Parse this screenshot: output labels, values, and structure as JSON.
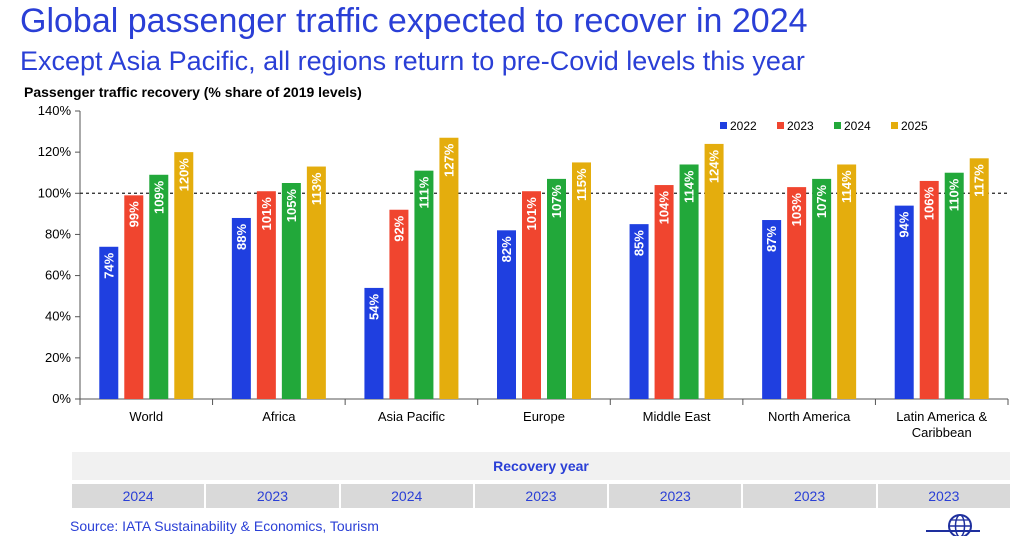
{
  "header": {
    "title": "Global passenger traffic expected to recover in 2024",
    "subtitle": "Except Asia Pacific, all regions return to pre-Covid levels this year"
  },
  "chart_data": {
    "type": "bar",
    "title": "Passenger traffic recovery (% share of 2019 levels)",
    "categories": [
      "World",
      "Africa",
      "Asia Pacific",
      "Europe",
      "Middle East",
      "North America",
      "Latin America & Caribbean"
    ],
    "series": [
      {
        "name": "2022",
        "color": "#1f3fe0",
        "values": [
          74,
          88,
          54,
          82,
          85,
          87,
          94
        ]
      },
      {
        "name": "2023",
        "color": "#f0452f",
        "values": [
          99,
          101,
          92,
          101,
          104,
          103,
          106
        ]
      },
      {
        "name": "2024",
        "color": "#22a83a",
        "values": [
          109,
          105,
          111,
          107,
          114,
          107,
          110
        ]
      },
      {
        "name": "2025",
        "color": "#e4ad0d",
        "values": [
          120,
          113,
          127,
          115,
          124,
          114,
          117
        ]
      }
    ],
    "data_labels": [
      [
        "74%",
        "99%",
        "109%",
        "120%"
      ],
      [
        "88%",
        "101%",
        "105%",
        "113%"
      ],
      [
        "54%",
        "92%",
        "111%",
        "127%"
      ],
      [
        "82%",
        "101%",
        "107%",
        "115%"
      ],
      [
        "85%",
        "104%",
        "114%",
        "124%"
      ],
      [
        "87%",
        "103%",
        "107%",
        "114%"
      ],
      [
        "94%",
        "106%",
        "110%",
        "117%"
      ]
    ],
    "yticks": [
      "0%",
      "20%",
      "40%",
      "60%",
      "80%",
      "100%",
      "120%",
      "140%"
    ],
    "ylim": [
      0,
      140
    ],
    "reference_line": 100,
    "legend_position": "top-right",
    "grid": false
  },
  "recovery": {
    "header": "Recovery year",
    "years": [
      "2024",
      "2023",
      "2024",
      "2023",
      "2023",
      "2023",
      "2023"
    ]
  },
  "footer": {
    "source": "Source: IATA Sustainability & Economics, Tourism",
    "logo_icon": "globe-icon"
  }
}
